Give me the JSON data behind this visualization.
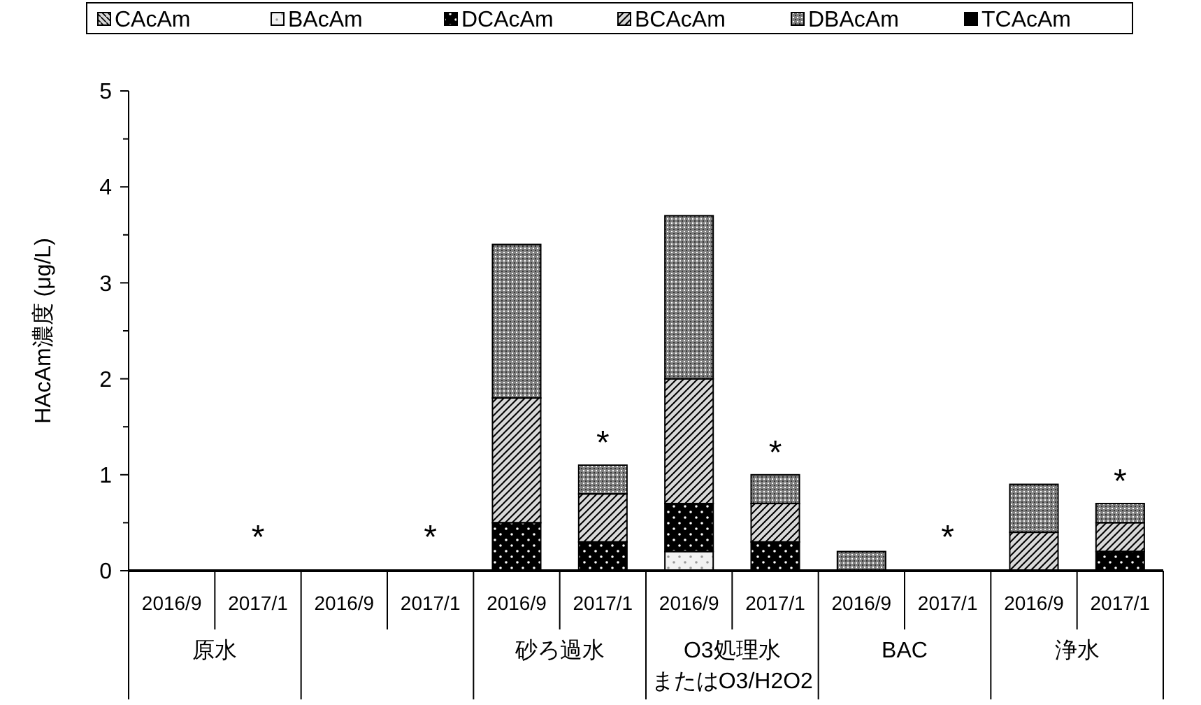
{
  "chart_data": {
    "type": "bar",
    "stacked": true,
    "ylabel": "HAcAm濃度 (μg/L)",
    "legend": "top",
    "grid": false,
    "categories": [
      "2016/9",
      "2017/1",
      "2016/9",
      "2017/1",
      "2016/9",
      "2017/1",
      "2016/9",
      "2017/1",
      "2016/9",
      "2017/1",
      "2016/9",
      "2017/1"
    ],
    "ylim": [
      0,
      5
    ],
    "yticks": [
      0,
      {
        "value": 0.5,
        "label": null
      },
      1,
      {
        "value": 1.5,
        "label": null
      },
      2,
      {
        "value": 2.5,
        "label": null
      },
      3,
      {
        "value": 3.5,
        "label": null
      },
      4,
      {
        "value": 4.5,
        "label": null
      },
      5
    ],
    "series": [
      {
        "name": "CAcAm",
        "color": "#d9d9d9",
        "values": [
          0,
          0,
          0,
          0,
          0,
          0,
          0,
          0,
          0,
          0,
          0,
          0
        ]
      },
      {
        "name": "BAcAm",
        "color": "#f2f2f2",
        "values": [
          0,
          0,
          0,
          0,
          0,
          0,
          0.2,
          0,
          0,
          0,
          0,
          0
        ]
      },
      {
        "name": "DCAcAm",
        "color": "#000000",
        "values": [
          0,
          0,
          0,
          0,
          0.5,
          0.3,
          0.5,
          0.3,
          0,
          0,
          0,
          0.2
        ]
      },
      {
        "name": "BCAcAm",
        "color": "#d9d9d9",
        "values": [
          0,
          0,
          0,
          0,
          1.3,
          0.5,
          1.3,
          0.4,
          0,
          0,
          0.4,
          0.3
        ]
      },
      {
        "name": "DBAcAm",
        "color": "#808080",
        "values": [
          0,
          0,
          0,
          0,
          1.6,
          0.3,
          1.7,
          0.3,
          0.2,
          0,
          0.5,
          0.2
        ]
      },
      {
        "name": "TCAcAm",
        "color": "#000000",
        "values": [
          0,
          0,
          0,
          0,
          0,
          0,
          0,
          0,
          0,
          0,
          0,
          0
        ]
      }
    ],
    "annotations": [
      "原水",
      null,
      "砂ろ過水",
      "O3処理水またはO3/H2O2",
      "BAC",
      "浄水",
      "*",
      "*",
      "*",
      "*",
      "*",
      "*"
    ]
  }
}
